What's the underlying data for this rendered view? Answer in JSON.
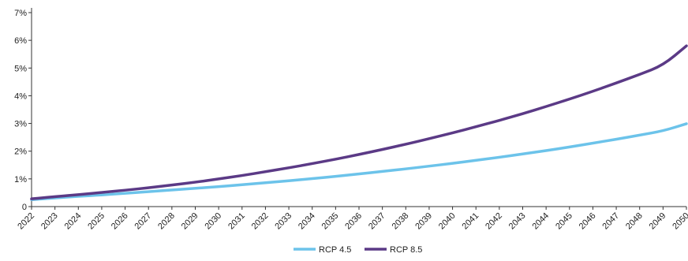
{
  "chart_data": {
    "type": "line",
    "title": "",
    "xlabel": "",
    "ylabel": "",
    "x": [
      2022,
      2023,
      2024,
      2025,
      2026,
      2027,
      2028,
      2029,
      2030,
      2031,
      2032,
      2033,
      2034,
      2035,
      2036,
      2037,
      2038,
      2039,
      2040,
      2041,
      2042,
      2043,
      2044,
      2045,
      2046,
      2047,
      2048,
      2049,
      2050
    ],
    "x_tick_labels": [
      "2022",
      "2023",
      "2024",
      "2025",
      "2026",
      "2027",
      "2028",
      "2029",
      "2030",
      "2031",
      "2032",
      "2033",
      "2034",
      "2035",
      "2036",
      "2037",
      "2038",
      "2039",
      "2040",
      "2041",
      "2042",
      "2043",
      "2044",
      "2045",
      "2046",
      "2047",
      "2048",
      "2049",
      "2050"
    ],
    "y_tick_labels": [
      "0",
      "1%",
      "2%",
      "3%",
      "4%",
      "5%",
      "6%",
      "7%"
    ],
    "y_ticks": [
      0,
      1,
      2,
      3,
      4,
      5,
      6,
      7
    ],
    "ylim": [
      0,
      7
    ],
    "xlim": [
      2022,
      2050
    ],
    "grid": false,
    "legend_position": "bottom-center",
    "series": [
      {
        "name": "RCP 4.5",
        "color": "#6cc3ea",
        "values": [
          0.25,
          0.31,
          0.37,
          0.42,
          0.48,
          0.54,
          0.6,
          0.66,
          0.72,
          0.79,
          0.86,
          0.93,
          1.01,
          1.09,
          1.18,
          1.27,
          1.36,
          1.46,
          1.56,
          1.67,
          1.78,
          1.9,
          2.02,
          2.15,
          2.29,
          2.43,
          2.58,
          2.73,
          2.99
        ]
      },
      {
        "name": "RCP 8.5",
        "color": "#5b3a86",
        "values": [
          0.28,
          0.36,
          0.43,
          0.51,
          0.59,
          0.68,
          0.78,
          0.88,
          1.0,
          1.12,
          1.26,
          1.4,
          1.55,
          1.71,
          1.88,
          2.06,
          2.25,
          2.45,
          2.66,
          2.88,
          3.11,
          3.35,
          3.61,
          3.88,
          4.16,
          4.46,
          4.77,
          5.1,
          5.8
        ]
      }
    ]
  }
}
